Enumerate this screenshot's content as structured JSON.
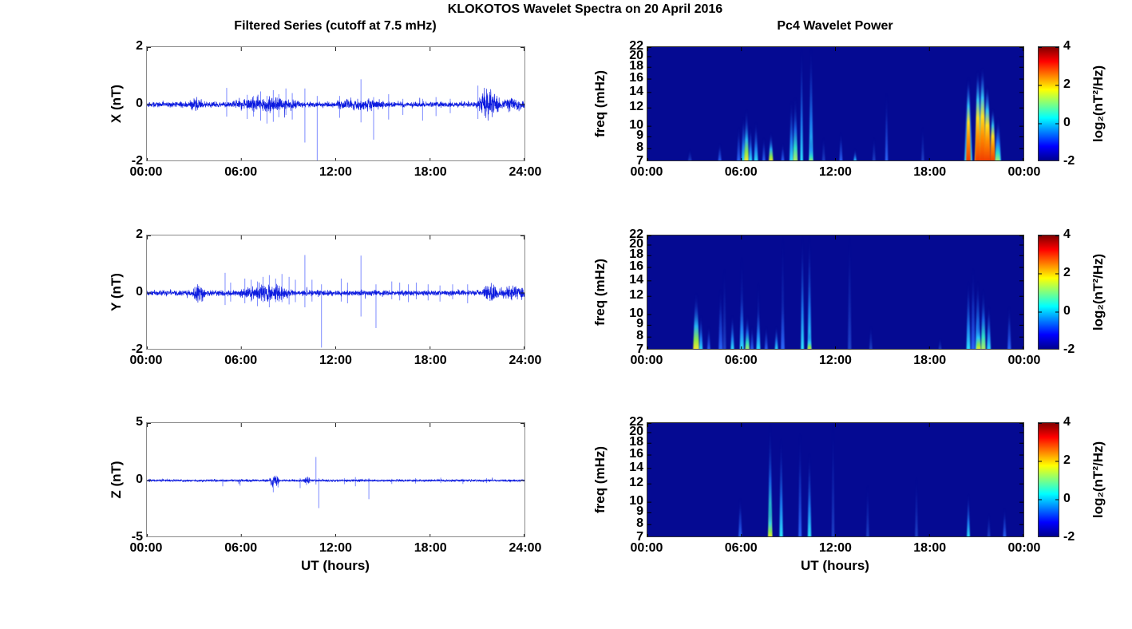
{
  "figure_title": "KLOKOTOS Wavelet Spectra on 20 April 2016",
  "left_column": {
    "title": "Filtered Series (cutoff at 7.5 mHz)",
    "xlabel": "UT (hours)"
  },
  "right_column": {
    "title": "Pc4 Wavelet Power",
    "xlabel": "UT (hours)"
  },
  "colors": {
    "series_line": "#0010DD",
    "spike_line": "#6677FF",
    "spectrogram_background": "#050A92",
    "colormap": "jet"
  },
  "chart_data": [
    {
      "id": "X",
      "type": "line",
      "ylabel": "X (nT)",
      "ylim": [
        -2,
        2
      ],
      "yticks": [
        2,
        0,
        -2
      ],
      "xticks": [
        "00:00",
        "06:00",
        "12:00",
        "18:00",
        "24:00"
      ],
      "x_hours": [
        0,
        24
      ],
      "line_color": "#0010DD",
      "seed": 42,
      "noise_base_nT": 0.045,
      "noise_bursts": [
        [
          2.7,
          3.5,
          0.07
        ],
        [
          5.3,
          9.7,
          0.075
        ],
        [
          11.8,
          15.2,
          0.05
        ],
        [
          20.9,
          22.35,
          0.22
        ],
        [
          22.35,
          24,
          0.06
        ]
      ],
      "spike_format": [
        "t_hours",
        "peak_nT",
        "trough_nT"
      ],
      "spikes": [
        [
          5.05,
          0.58,
          -0.42
        ],
        [
          6.35,
          0.34,
          -0.5
        ],
        [
          6.75,
          0.3,
          -0.42
        ],
        [
          7.2,
          0.46,
          -0.56
        ],
        [
          7.6,
          0.3,
          -0.66
        ],
        [
          8.0,
          0.5,
          -0.6
        ],
        [
          8.35,
          0.36,
          -0.44
        ],
        [
          8.8,
          0.56,
          -0.36
        ],
        [
          9.2,
          0.4,
          -0.52
        ],
        [
          10.0,
          0.56,
          -1.32
        ],
        [
          10.78,
          0.3,
          -2.1
        ],
        [
          12.2,
          0.3,
          -0.46
        ],
        [
          13.55,
          0.88,
          -0.62
        ],
        [
          14.35,
          0.26,
          -1.22
        ],
        [
          15.3,
          0.36,
          -0.52
        ],
        [
          16.2,
          0.2,
          -0.36
        ],
        [
          17.45,
          0.2,
          -0.56
        ],
        [
          18.3,
          0.26,
          -0.4
        ],
        [
          19.2,
          0.2,
          -0.3
        ],
        [
          20.95,
          0.66,
          -0.5
        ]
      ]
    },
    {
      "id": "Y",
      "type": "line",
      "ylabel": "Y (nT)",
      "ylim": [
        -2,
        2
      ],
      "yticks": [
        2,
        0,
        -2
      ],
      "xticks": [
        "00:00",
        "06:00",
        "12:00",
        "18:00",
        "24:00"
      ],
      "x_hours": [
        0,
        24
      ],
      "line_color": "#0010DD",
      "seed": 1337,
      "noise_base_nT": 0.045,
      "noise_bursts": [
        [
          2.9,
          3.7,
          0.12
        ],
        [
          5.8,
          9.2,
          0.09
        ],
        [
          21.2,
          22.4,
          0.11
        ],
        [
          22.4,
          24,
          0.07
        ]
      ],
      "spike_format": [
        "t_hours",
        "peak_nT",
        "trough_nT"
      ],
      "spikes": [
        [
          4.95,
          0.7,
          -0.42
        ],
        [
          5.3,
          0.36,
          -0.3
        ],
        [
          6.2,
          0.5,
          -0.36
        ],
        [
          6.6,
          0.46,
          -0.3
        ],
        [
          7.0,
          0.4,
          -0.46
        ],
        [
          7.35,
          0.56,
          -0.32
        ],
        [
          7.75,
          0.62,
          -0.5
        ],
        [
          8.15,
          0.5,
          -0.32
        ],
        [
          8.55,
          0.66,
          -0.32
        ],
        [
          9.0,
          0.56,
          -0.4
        ],
        [
          9.4,
          0.46,
          -0.32
        ],
        [
          10.0,
          1.32,
          -0.5
        ],
        [
          10.45,
          0.46,
          -0.3
        ],
        [
          11.05,
          0.3,
          -1.9
        ],
        [
          12.3,
          0.5,
          -0.3
        ],
        [
          12.7,
          0.36,
          -0.36
        ],
        [
          13.55,
          1.3,
          -0.82
        ],
        [
          14.5,
          0.3,
          -1.22
        ],
        [
          15.5,
          0.4,
          -0.22
        ],
        [
          16.0,
          0.36,
          -0.26
        ],
        [
          16.55,
          0.3,
          -0.32
        ],
        [
          17.05,
          0.36,
          -0.22
        ],
        [
          17.8,
          0.3,
          -0.26
        ],
        [
          18.55,
          0.26,
          -0.3
        ],
        [
          19.35,
          0.3,
          -0.22
        ],
        [
          20.3,
          0.3,
          -0.36
        ]
      ]
    },
    {
      "id": "Z",
      "type": "line",
      "ylabel": "Z (nT)",
      "ylim": [
        -5,
        5
      ],
      "yticks": [
        5,
        0,
        -5
      ],
      "xticks": [
        "00:00",
        "06:00",
        "12:00",
        "18:00",
        "24:00"
      ],
      "x_hours": [
        0,
        24
      ],
      "line_color": "#0010DD",
      "seed": 7,
      "noise_base_nT": 0.05,
      "noise_bursts": [
        [
          7.7,
          8.4,
          0.22
        ],
        [
          9.9,
          10.4,
          0.1
        ]
      ],
      "spike_format": [
        "t_hours",
        "peak_nT",
        "trough_nT"
      ],
      "spikes": [
        [
          4.8,
          0.15,
          -0.5
        ],
        [
          5.9,
          0.12,
          -0.45
        ],
        [
          8.0,
          0.3,
          -1.02
        ],
        [
          8.3,
          0.26,
          -0.6
        ],
        [
          9.7,
          0.2,
          -0.66
        ],
        [
          10.1,
          0.3,
          -0.4
        ],
        [
          10.7,
          2.05,
          -0.35
        ],
        [
          10.88,
          0.2,
          -2.4
        ],
        [
          12.5,
          0.2,
          -0.32
        ],
        [
          13.2,
          0.3,
          -0.5
        ],
        [
          14.05,
          0.2,
          -1.62
        ],
        [
          15.5,
          0.15,
          -0.3
        ],
        [
          17.0,
          0.2,
          -0.26
        ],
        [
          18.6,
          0.25,
          -0.22
        ],
        [
          20.0,
          0.15,
          -0.3
        ],
        [
          21.5,
          0.2,
          -0.22
        ]
      ]
    },
    {
      "id": "Xw",
      "type": "heatmap",
      "ylabel": "freq (mHz)",
      "yscale": "log",
      "ylim_mHz": [
        7,
        22
      ],
      "yticks": [
        22,
        20,
        18,
        16,
        14,
        12,
        10,
        9,
        8,
        7
      ],
      "xticks": [
        "00:00",
        "06:00",
        "12:00",
        "18:00",
        "00:00"
      ],
      "x_hours": [
        0,
        24
      ],
      "background": "#050A92",
      "colorbar": {
        "label": "log₂(nT²/Hz)",
        "ticks": [
          4,
          2,
          0,
          -2
        ],
        "range": [
          -2,
          4
        ],
        "colormap": "jet"
      },
      "event_format": [
        "t_hours",
        "f_top_mHz",
        "intensity_level",
        "width_hours"
      ],
      "events": [
        [
          2.7,
          8,
          "faint",
          0.25
        ],
        [
          4.6,
          8.5,
          "blue",
          0.22
        ],
        [
          5.8,
          10,
          "blue",
          0.22
        ],
        [
          6.1,
          11,
          "cyan",
          0.25
        ],
        [
          6.3,
          12,
          "yellow",
          0.3
        ],
        [
          6.55,
          10,
          "cyan",
          0.22
        ],
        [
          6.9,
          10.5,
          "cyan",
          0.25
        ],
        [
          7.4,
          9,
          "blue",
          0.2
        ],
        [
          7.85,
          9.5,
          "yellow",
          0.28
        ],
        [
          8.6,
          8.5,
          "blue",
          0.2
        ],
        [
          9.15,
          13,
          "cyan",
          0.25
        ],
        [
          9.4,
          13.5,
          "green",
          0.3
        ],
        [
          9.8,
          22,
          "cyan",
          0.18
        ],
        [
          10.4,
          22,
          "cyan",
          0.25
        ],
        [
          10.4,
          9,
          "green",
          0.25
        ],
        [
          11.2,
          9,
          "faint",
          0.2
        ],
        [
          12.3,
          9.5,
          "blue",
          0.2
        ],
        [
          13.2,
          8,
          "cyan",
          0.2
        ],
        [
          14.4,
          9,
          "faint",
          0.2
        ],
        [
          15.2,
          14,
          "blue",
          0.18
        ],
        [
          17.5,
          10,
          "faint",
          0.18
        ],
        [
          20.4,
          16.5,
          "cyan",
          0.5
        ],
        [
          20.4,
          16,
          "hot",
          0.3
        ],
        [
          21.15,
          17,
          "yellow",
          0.7
        ],
        [
          21.0,
          17.5,
          "hot",
          0.35
        ],
        [
          21.3,
          18,
          "hot",
          0.4
        ],
        [
          21.6,
          15,
          "hot",
          0.45
        ],
        [
          21.95,
          12,
          "hot",
          0.35
        ],
        [
          22.3,
          11,
          "cyan",
          0.35
        ],
        [
          22.25,
          10.5,
          "green",
          0.3
        ]
      ]
    },
    {
      "id": "Yw",
      "type": "heatmap",
      "ylabel": "freq (mHz)",
      "yscale": "log",
      "ylim_mHz": [
        7,
        22
      ],
      "yticks": [
        22,
        20,
        18,
        16,
        14,
        12,
        10,
        9,
        8,
        7
      ],
      "xticks": [
        "00:00",
        "06:00",
        "12:00",
        "18:00",
        "00:00"
      ],
      "x_hours": [
        0,
        24
      ],
      "background": "#050A92",
      "colorbar": {
        "label": "log₂(nT²/Hz)",
        "ticks": [
          4,
          2,
          0,
          -2
        ],
        "range": [
          -2,
          4
        ],
        "colormap": "jet"
      },
      "event_format": [
        "t_hours",
        "f_top_mHz",
        "intensity_level",
        "width_hours"
      ],
      "events": [
        [
          3.1,
          12.5,
          "yellow",
          0.4
        ],
        [
          3.4,
          10,
          "cyan",
          0.22
        ],
        [
          3.9,
          9,
          "blue",
          0.2
        ],
        [
          4.65,
          13,
          "blue",
          0.25
        ],
        [
          4.9,
          16,
          "faint",
          0.2
        ],
        [
          5.4,
          10,
          "cyan",
          0.22
        ],
        [
          6.0,
          18,
          "faint",
          0.25
        ],
        [
          6.0,
          13,
          "cyan",
          0.25
        ],
        [
          6.35,
          10,
          "green",
          0.28
        ],
        [
          6.65,
          9,
          "blue",
          0.2
        ],
        [
          7.05,
          14,
          "faint",
          0.2
        ],
        [
          7.05,
          11,
          "cyan",
          0.25
        ],
        [
          7.55,
          9,
          "blue",
          0.2
        ],
        [
          8.2,
          9,
          "cyan",
          0.2
        ],
        [
          8.6,
          22,
          "faint",
          0.2
        ],
        [
          8.6,
          12,
          "blue",
          0.22
        ],
        [
          9.85,
          22,
          "cyan",
          0.2
        ],
        [
          10.3,
          22,
          "cyan",
          0.22
        ],
        [
          10.3,
          8.5,
          "yellow",
          0.25
        ],
        [
          12.85,
          22,
          "faint",
          0.22
        ],
        [
          14.2,
          9,
          "faint",
          0.2
        ],
        [
          18.6,
          8,
          "faint",
          0.2
        ],
        [
          20.4,
          14,
          "cyan",
          0.25
        ],
        [
          20.7,
          16,
          "blue",
          0.25
        ],
        [
          21.0,
          14,
          "cyan",
          0.3
        ],
        [
          21.05,
          9.5,
          "yellow",
          0.3
        ],
        [
          21.35,
          13,
          "green",
          0.3
        ],
        [
          21.7,
          11,
          "cyan",
          0.25
        ],
        [
          23.0,
          11,
          "blue",
          0.22
        ]
      ]
    },
    {
      "id": "Zw",
      "type": "heatmap",
      "ylabel": "freq (mHz)",
      "yscale": "log",
      "ylim_mHz": [
        7,
        22
      ],
      "yticks": [
        22,
        20,
        18,
        16,
        14,
        12,
        10,
        9,
        8,
        7
      ],
      "xticks": [
        "00:00",
        "06:00",
        "12:00",
        "18:00",
        "00:00"
      ],
      "x_hours": [
        0,
        24
      ],
      "background": "#050A92",
      "colorbar": {
        "label": "log₂(nT²/Hz)",
        "ticks": [
          4,
          2,
          0,
          -2
        ],
        "range": [
          -2,
          4
        ],
        "colormap": "jet"
      },
      "event_format": [
        "t_hours",
        "f_top_mHz",
        "intensity_level",
        "width_hours"
      ],
      "events": [
        [
          5.9,
          10.5,
          "blue",
          0.22
        ],
        [
          7.8,
          22,
          "green",
          0.25
        ],
        [
          7.8,
          10,
          "yellow",
          0.25
        ],
        [
          8.5,
          19,
          "cyan",
          0.22
        ],
        [
          9.7,
          20,
          "blue",
          0.2
        ],
        [
          10.3,
          16.5,
          "cyan",
          0.22
        ],
        [
          11.8,
          22,
          "faint",
          0.18
        ],
        [
          14.0,
          12,
          "faint",
          0.18
        ],
        [
          17.1,
          13,
          "faint",
          0.18
        ],
        [
          20.4,
          11,
          "cyan",
          0.2
        ],
        [
          21.7,
          9,
          "faint",
          0.2
        ],
        [
          22.7,
          9.5,
          "blue",
          0.2
        ]
      ]
    }
  ]
}
